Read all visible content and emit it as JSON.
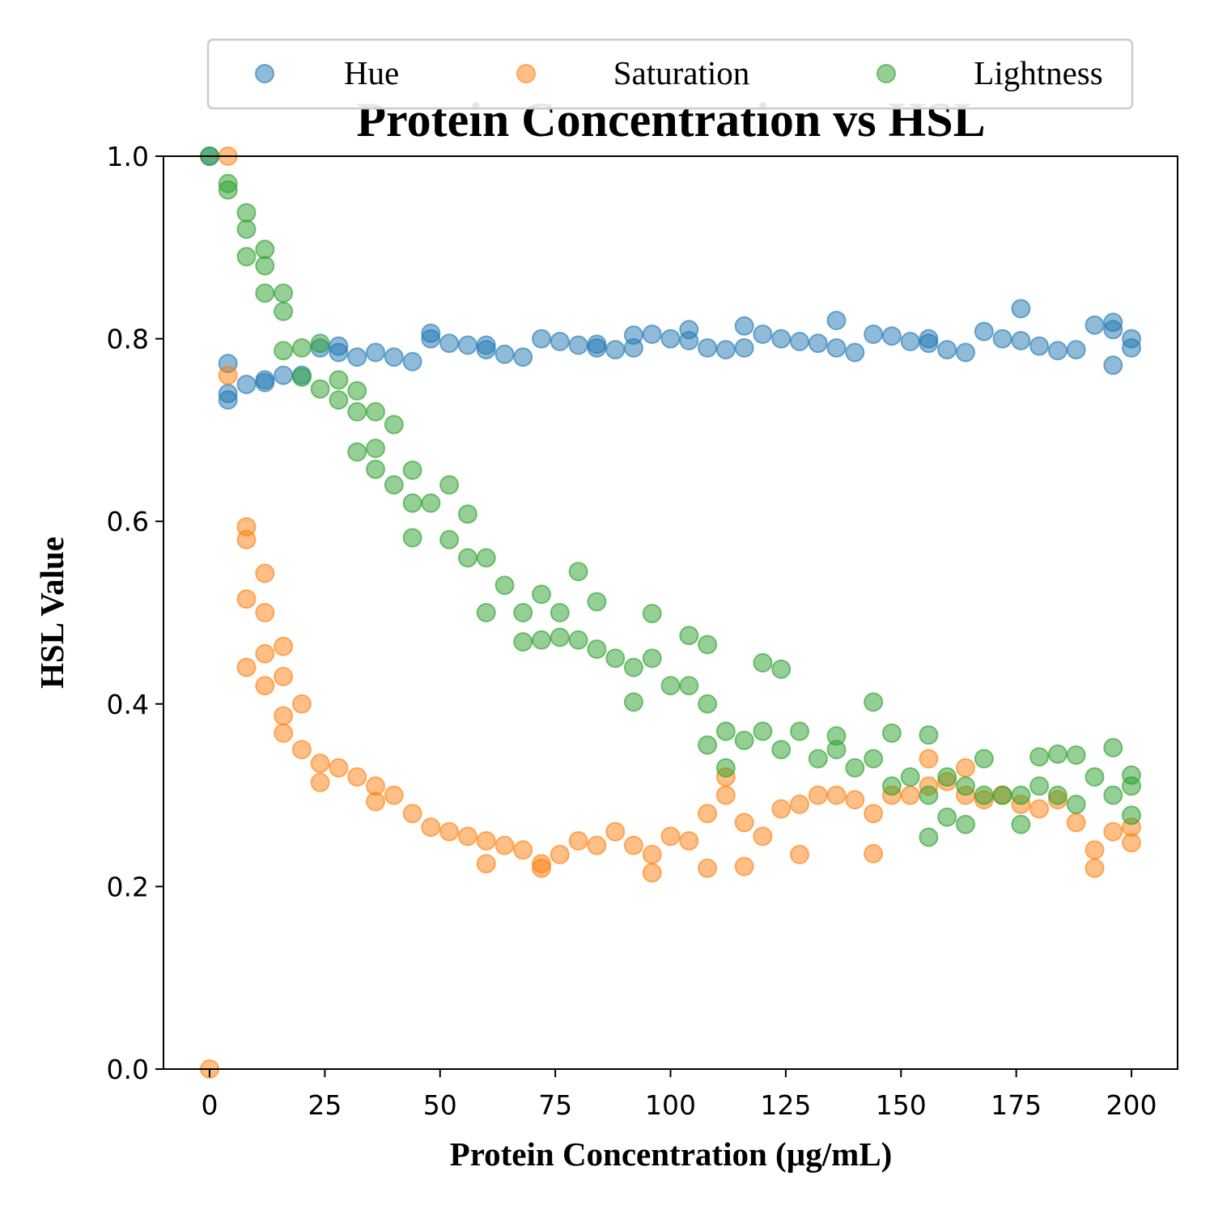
{
  "chart_data": {
    "type": "scatter",
    "title": "Protein Concentration vs HSL",
    "xlabel": "Protein Concentration (µg/mL)",
    "ylabel": "HSL Value",
    "xlim": [
      -10,
      210
    ],
    "ylim": [
      0,
      1.0
    ],
    "xticks": [
      0,
      25,
      50,
      75,
      100,
      125,
      150,
      175,
      200
    ],
    "xtick_labels": [
      "0",
      "25",
      "50",
      "75",
      "100",
      "125",
      "150",
      "175",
      "200"
    ],
    "yticks": [
      0.0,
      0.2,
      0.4,
      0.6,
      0.8,
      1.0
    ],
    "ytick_labels": [
      "0.0",
      "0.2",
      "0.4",
      "0.6",
      "0.8",
      "1.0"
    ],
    "grid": false,
    "legend": {
      "placement": "top, outside plot",
      "columns": 3
    },
    "x": [
      0,
      4,
      8,
      12,
      16,
      20,
      24,
      28,
      32,
      36,
      40,
      44,
      48,
      52,
      56,
      60,
      64,
      68,
      72,
      76,
      80,
      84,
      88,
      92,
      96,
      100,
      104,
      108,
      112,
      116,
      120,
      124,
      128,
      132,
      136,
      140,
      144,
      148,
      152,
      156,
      160,
      164,
      168,
      172,
      176,
      180,
      184,
      188,
      192,
      196,
      200
    ],
    "series": [
      {
        "name": "Hue",
        "color": "#1f77b4",
        "values": [
          1.0,
          0.74,
          0.75,
          0.755,
          0.76,
          0.76,
          0.79,
          0.785,
          0.78,
          0.785,
          0.78,
          0.775,
          0.8,
          0.795,
          0.793,
          0.788,
          0.783,
          0.78,
          0.8,
          0.797,
          0.793,
          0.79,
          0.788,
          0.79,
          0.805,
          0.8,
          0.798,
          0.79,
          0.788,
          0.79,
          0.805,
          0.8,
          0.797,
          0.795,
          0.79,
          0.785,
          0.805,
          0.803,
          0.797,
          0.795,
          0.788,
          0.785,
          0.808,
          0.8,
          0.798,
          0.792,
          0.787,
          0.788,
          0.815,
          0.81,
          0.8
        ],
        "extra_points": [
          [
            4,
            0.773
          ],
          [
            4,
            0.733
          ],
          [
            48,
            0.806
          ],
          [
            104,
            0.81
          ],
          [
            116,
            0.814
          ],
          [
            136,
            0.82
          ],
          [
            176,
            0.833
          ],
          [
            196,
            0.818
          ],
          [
            196,
            0.771
          ],
          [
            200,
            0.79
          ],
          [
            156,
            0.8
          ],
          [
            92,
            0.804
          ],
          [
            84,
            0.794
          ],
          [
            12,
            0.752
          ],
          [
            28,
            0.792
          ],
          [
            60,
            0.793
          ]
        ]
      },
      {
        "name": "Saturation",
        "color": "#ff7f0e",
        "values": [
          0.0,
          0.76,
          0.58,
          0.5,
          0.43,
          0.35,
          0.335,
          0.33,
          0.32,
          0.31,
          0.3,
          0.28,
          0.265,
          0.26,
          0.255,
          0.25,
          0.245,
          0.24,
          0.225,
          0.235,
          0.25,
          0.245,
          0.26,
          0.245,
          0.235,
          0.255,
          0.25,
          0.28,
          0.3,
          0.27,
          0.255,
          0.285,
          0.29,
          0.3,
          0.3,
          0.295,
          0.28,
          0.3,
          0.3,
          0.31,
          0.315,
          0.3,
          0.295,
          0.3,
          0.29,
          0.285,
          0.295,
          0.27,
          0.24,
          0.26,
          0.265
        ],
        "extra_points": [
          [
            4,
            1.0
          ],
          [
            8,
            0.594
          ],
          [
            8,
            0.515
          ],
          [
            8,
            0.44
          ],
          [
            12,
            0.543
          ],
          [
            12,
            0.455
          ],
          [
            12,
            0.42
          ],
          [
            16,
            0.463
          ],
          [
            16,
            0.387
          ],
          [
            16,
            0.368
          ],
          [
            20,
            0.4
          ],
          [
            24,
            0.314
          ],
          [
            36,
            0.293
          ],
          [
            60,
            0.225
          ],
          [
            72,
            0.22
          ],
          [
            96,
            0.215
          ],
          [
            108,
            0.22
          ],
          [
            112,
            0.32
          ],
          [
            116,
            0.222
          ],
          [
            128,
            0.235
          ],
          [
            144,
            0.236
          ],
          [
            156,
            0.34
          ],
          [
            164,
            0.33
          ],
          [
            192,
            0.22
          ],
          [
            200,
            0.248
          ]
        ]
      },
      {
        "name": "Lightness",
        "color": "#2ca02c",
        "values": [
          1.0,
          0.97,
          0.92,
          0.88,
          0.83,
          0.79,
          0.795,
          0.755,
          0.72,
          0.68,
          0.64,
          0.62,
          0.62,
          0.58,
          0.56,
          0.56,
          0.53,
          0.5,
          0.52,
          0.5,
          0.47,
          0.46,
          0.45,
          0.44,
          0.45,
          0.42,
          0.42,
          0.4,
          0.37,
          0.36,
          0.37,
          0.35,
          0.37,
          0.34,
          0.35,
          0.33,
          0.34,
          0.31,
          0.32,
          0.3,
          0.32,
          0.31,
          0.3,
          0.3,
          0.3,
          0.31,
          0.3,
          0.29,
          0.32,
          0.3,
          0.31
        ],
        "extra_points": [
          [
            4,
            0.963
          ],
          [
            8,
            0.938
          ],
          [
            8,
            0.89
          ],
          [
            12,
            0.898
          ],
          [
            12,
            0.85
          ],
          [
            16,
            0.85
          ],
          [
            16,
            0.787
          ],
          [
            20,
            0.758
          ],
          [
            24,
            0.745
          ],
          [
            28,
            0.733
          ],
          [
            32,
            0.743
          ],
          [
            32,
            0.676
          ],
          [
            36,
            0.72
          ],
          [
            36,
            0.657
          ],
          [
            40,
            0.706
          ],
          [
            44,
            0.656
          ],
          [
            44,
            0.582
          ],
          [
            52,
            0.64
          ],
          [
            56,
            0.608
          ],
          [
            60,
            0.5
          ],
          [
            68,
            0.468
          ],
          [
            72,
            0.47
          ],
          [
            76,
            0.473
          ],
          [
            80,
            0.545
          ],
          [
            84,
            0.512
          ],
          [
            92,
            0.402
          ],
          [
            96,
            0.499
          ],
          [
            104,
            0.475
          ],
          [
            108,
            0.465
          ],
          [
            108,
            0.355
          ],
          [
            112,
            0.33
          ],
          [
            120,
            0.445
          ],
          [
            124,
            0.438
          ],
          [
            136,
            0.365
          ],
          [
            144,
            0.402
          ],
          [
            148,
            0.368
          ],
          [
            156,
            0.366
          ],
          [
            156,
            0.254
          ],
          [
            160,
            0.276
          ],
          [
            164,
            0.268
          ],
          [
            168,
            0.34
          ],
          [
            176,
            0.268
          ],
          [
            180,
            0.342
          ],
          [
            184,
            0.345
          ],
          [
            188,
            0.344
          ],
          [
            196,
            0.352
          ],
          [
            200,
            0.322
          ],
          [
            200,
            0.278
          ]
        ]
      }
    ]
  }
}
